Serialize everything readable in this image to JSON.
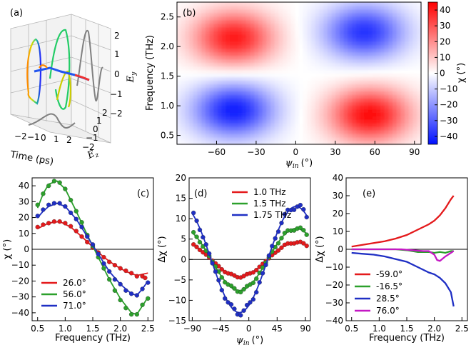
{
  "figure": {
    "panel_a": {
      "label": "(a)",
      "xlabel": "Time (ps)",
      "x_ticks": [
        "−2",
        "−1",
        "0",
        "1",
        "2"
      ],
      "ez_label": "E",
      "ez_sub": "z",
      "ez_ticks": [
        "−2",
        "−1",
        "0",
        "1",
        "2"
      ],
      "ey_label": "E",
      "ey_sub": "y",
      "ey_ticks": [
        "−2",
        "−1",
        "0",
        "1",
        "2"
      ]
    },
    "colors": {
      "red": "#e41a1c",
      "green": "#2ca02c",
      "blue": "#1f2fc4",
      "magenta": "#c418c4",
      "gray": "#808080"
    }
  },
  "chart_data": [
    {
      "type": "heatmap",
      "panel": "(b)",
      "xlabel_sym": "ψ",
      "xlabel_sub": "in",
      "xlabel_unit": "(°)",
      "ylabel": "Frequency (THz)",
      "xlim": [
        -90,
        95
      ],
      "ylim": [
        0.35,
        2.75
      ],
      "xticks": [
        -60,
        -30,
        0,
        30,
        60,
        90
      ],
      "yticks": [
        0.5,
        1.0,
        1.5,
        2.0,
        2.5
      ],
      "ytick_labels": [
        "0.5",
        "1.0",
        "1.5",
        "2.0",
        "2.5"
      ],
      "lobes": [
        {
          "psi": -47,
          "freq": 2.15,
          "peak": 40
        },
        {
          "psi": 52,
          "freq": 2.25,
          "peak": -38
        },
        {
          "psi": -47,
          "freq": 0.93,
          "peak": -42
        },
        {
          "psi": 56,
          "freq": 0.85,
          "peak": 43
        }
      ],
      "colorbar": {
        "label": "χ (°)",
        "min": -45,
        "max": 45,
        "ticks": [
          40,
          30,
          20,
          10,
          0,
          -10,
          -20,
          -30,
          -40
        ]
      }
    },
    {
      "type": "line",
      "panel": "(c)",
      "xlabel": "Frequency (THz)",
      "ylabel": "χ (°)",
      "xlim": [
        0.4,
        2.6
      ],
      "ylim": [
        -45,
        45
      ],
      "xticks": [
        0.5,
        1.0,
        1.5,
        2.0,
        2.5
      ],
      "xtick_labels": [
        "0.5",
        "1.0",
        "1.5",
        "2.0",
        "2.5"
      ],
      "yticks": [
        -40,
        -30,
        -20,
        -10,
        0,
        10,
        20,
        30,
        40
      ],
      "legend": "bottom-left",
      "series": [
        {
          "name": "26.0°",
          "color": "#e41a1c",
          "line": [
            [
              0.5,
              13
            ],
            [
              0.7,
              16.5
            ],
            [
              0.9,
              17.5
            ],
            [
              1.1,
              14
            ],
            [
              1.3,
              8
            ],
            [
              1.5,
              1.5
            ],
            [
              1.7,
              -5
            ],
            [
              1.9,
              -10
            ],
            [
              2.1,
              -14
            ],
            [
              2.3,
              -16.5
            ],
            [
              2.5,
              -15
            ]
          ],
          "dots": [
            [
              0.5,
              14
            ],
            [
              0.6,
              15.5
            ],
            [
              0.7,
              16.5
            ],
            [
              0.8,
              17.5
            ],
            [
              0.9,
              17.5
            ],
            [
              1.0,
              16.5
            ],
            [
              1.1,
              14.5
            ],
            [
              1.2,
              11.5
            ],
            [
              1.3,
              8
            ],
            [
              1.4,
              4.5
            ],
            [
              1.5,
              1
            ],
            [
              1.6,
              -2
            ],
            [
              1.7,
              -5
            ],
            [
              1.8,
              -8
            ],
            [
              1.9,
              -10
            ],
            [
              2.0,
              -12
            ],
            [
              2.1,
              -13.5
            ],
            [
              2.2,
              -15
            ],
            [
              2.3,
              -17
            ],
            [
              2.4,
              -17
            ],
            [
              2.45,
              -18
            ]
          ]
        },
        {
          "name": "56.0°",
          "color": "#2ca02c",
          "line": [
            [
              0.5,
              26
            ],
            [
              0.6,
              35
            ],
            [
              0.7,
              41
            ],
            [
              0.85,
              43
            ],
            [
              1.0,
              38
            ],
            [
              1.2,
              24
            ],
            [
              1.4,
              9
            ],
            [
              1.6,
              -5
            ],
            [
              1.8,
              -19
            ],
            [
              2.0,
              -31
            ],
            [
              2.2,
              -40
            ],
            [
              2.3,
              -41
            ],
            [
              2.45,
              -33
            ],
            [
              2.5,
              -30
            ]
          ],
          "dots": [
            [
              0.5,
              28
            ],
            [
              0.6,
              35
            ],
            [
              0.7,
              40
            ],
            [
              0.8,
              43
            ],
            [
              0.9,
              42
            ],
            [
              1.0,
              38
            ],
            [
              1.1,
              31
            ],
            [
              1.2,
              24
            ],
            [
              1.3,
              17
            ],
            [
              1.4,
              9
            ],
            [
              1.5,
              2
            ],
            [
              1.6,
              -5
            ],
            [
              1.7,
              -12
            ],
            [
              1.8,
              -19
            ],
            [
              1.9,
              -26
            ],
            [
              2.0,
              -32
            ],
            [
              2.1,
              -37
            ],
            [
              2.2,
              -41
            ],
            [
              2.3,
              -41
            ],
            [
              2.4,
              -35
            ],
            [
              2.5,
              -31
            ]
          ]
        },
        {
          "name": "71.0°",
          "color": "#1f2fc4",
          "line": [
            [
              0.5,
              20
            ],
            [
              0.6,
              24
            ],
            [
              0.7,
              27
            ],
            [
              0.85,
              29
            ],
            [
              1.0,
              27
            ],
            [
              1.2,
              19
            ],
            [
              1.4,
              8
            ],
            [
              1.6,
              -3
            ],
            [
              1.8,
              -14
            ],
            [
              2.0,
              -22
            ],
            [
              2.2,
              -28
            ],
            [
              2.3,
              -29
            ],
            [
              2.4,
              -25
            ],
            [
              2.5,
              -20
            ]
          ],
          "dots": [
            [
              0.5,
              21
            ],
            [
              0.6,
              25
            ],
            [
              0.7,
              28
            ],
            [
              0.8,
              29
            ],
            [
              0.9,
              29
            ],
            [
              1.0,
              27
            ],
            [
              1.1,
              23
            ],
            [
              1.2,
              19
            ],
            [
              1.3,
              14
            ],
            [
              1.4,
              8
            ],
            [
              1.5,
              3
            ],
            [
              1.6,
              -3
            ],
            [
              1.7,
              -9
            ],
            [
              1.8,
              -14
            ],
            [
              1.9,
              -19
            ],
            [
              2.0,
              -22
            ],
            [
              2.1,
              -26
            ],
            [
              2.2,
              -28
            ],
            [
              2.3,
              -29
            ],
            [
              2.4,
              -25
            ],
            [
              2.5,
              -21
            ]
          ]
        }
      ]
    },
    {
      "type": "line",
      "panel": "(d)",
      "xlabel_sym": "ψ",
      "xlabel_sub": "in",
      "xlabel_unit": "(°)",
      "ylabel": "Δχ (°)",
      "xlim": [
        -95,
        98
      ],
      "ylim": [
        -15,
        20
      ],
      "xticks": [
        -90,
        -45,
        0,
        45,
        90
      ],
      "yticks": [
        -15,
        -10,
        -5,
        0,
        5,
        10,
        15,
        20
      ],
      "legend": "top-right",
      "series": [
        {
          "name": "1.0 THz",
          "color": "#e41a1c",
          "amp": 4.2,
          "phase": -60
        },
        {
          "name": "1.5 THz",
          "color": "#2ca02c",
          "amp": 7.6,
          "phase": -60
        },
        {
          "name": "1.75 THz",
          "color": "#1f2fc4",
          "amp": 13.0,
          "phase": -60
        }
      ]
    },
    {
      "type": "line",
      "panel": "(e)",
      "xlabel": "Frequency (THz)",
      "ylabel": "Δχ (°)",
      "xlim": [
        0.4,
        2.6
      ],
      "ylim": [
        -40,
        40
      ],
      "xticks": [
        0.5,
        1.0,
        1.5,
        2.0,
        2.5
      ],
      "xtick_labels": [
        "0.5",
        "1.0",
        "1.5",
        "2.0",
        "2.5"
      ],
      "yticks": [
        -40,
        -30,
        -20,
        -10,
        0,
        10,
        20,
        30,
        40
      ],
      "legend": "bottom-left",
      "series": [
        {
          "name": "-59.0°",
          "color": "#e41a1c",
          "line": [
            [
              0.5,
              1.5
            ],
            [
              0.7,
              2.5
            ],
            [
              0.9,
              3.5
            ],
            [
              1.1,
              4.5
            ],
            [
              1.3,
              6
            ],
            [
              1.5,
              8
            ],
            [
              1.7,
              11
            ],
            [
              1.9,
              14
            ],
            [
              2.0,
              16
            ],
            [
              2.1,
              19
            ],
            [
              2.2,
              23
            ],
            [
              2.3,
              28
            ],
            [
              2.35,
              30
            ]
          ]
        },
        {
          "name": "-16.5°",
          "color": "#2ca02c",
          "line": [
            [
              0.5,
              0
            ],
            [
              0.7,
              0
            ],
            [
              0.9,
              0
            ],
            [
              1.1,
              0
            ],
            [
              1.3,
              0
            ],
            [
              1.5,
              -0.5
            ],
            [
              1.7,
              -1.5
            ],
            [
              1.9,
              -1.5
            ],
            [
              2.0,
              -2
            ],
            [
              2.1,
              -1.5
            ],
            [
              2.2,
              -2
            ],
            [
              2.3,
              -1
            ],
            [
              2.35,
              -1
            ]
          ]
        },
        {
          "name": "28.5°",
          "color": "#1f2fc4",
          "line": [
            [
              0.5,
              -2
            ],
            [
              0.7,
              -2.5
            ],
            [
              0.9,
              -3
            ],
            [
              1.1,
              -4
            ],
            [
              1.3,
              -5.5
            ],
            [
              1.5,
              -7
            ],
            [
              1.7,
              -10
            ],
            [
              1.9,
              -13
            ],
            [
              2.0,
              -14
            ],
            [
              2.1,
              -16
            ],
            [
              2.2,
              -19
            ],
            [
              2.3,
              -24
            ],
            [
              2.35,
              -32
            ]
          ]
        },
        {
          "name": "76.0°",
          "color": "#c418c4",
          "line": [
            [
              0.5,
              0
            ],
            [
              0.8,
              0
            ],
            [
              1.1,
              0
            ],
            [
              1.4,
              0
            ],
            [
              1.6,
              -0.5
            ],
            [
              1.8,
              -1
            ],
            [
              1.9,
              -1
            ],
            [
              2.0,
              -3
            ],
            [
              2.05,
              -6
            ],
            [
              2.1,
              -6.5
            ],
            [
              2.2,
              -4
            ],
            [
              2.3,
              -2
            ],
            [
              2.35,
              -1
            ]
          ]
        }
      ]
    }
  ]
}
